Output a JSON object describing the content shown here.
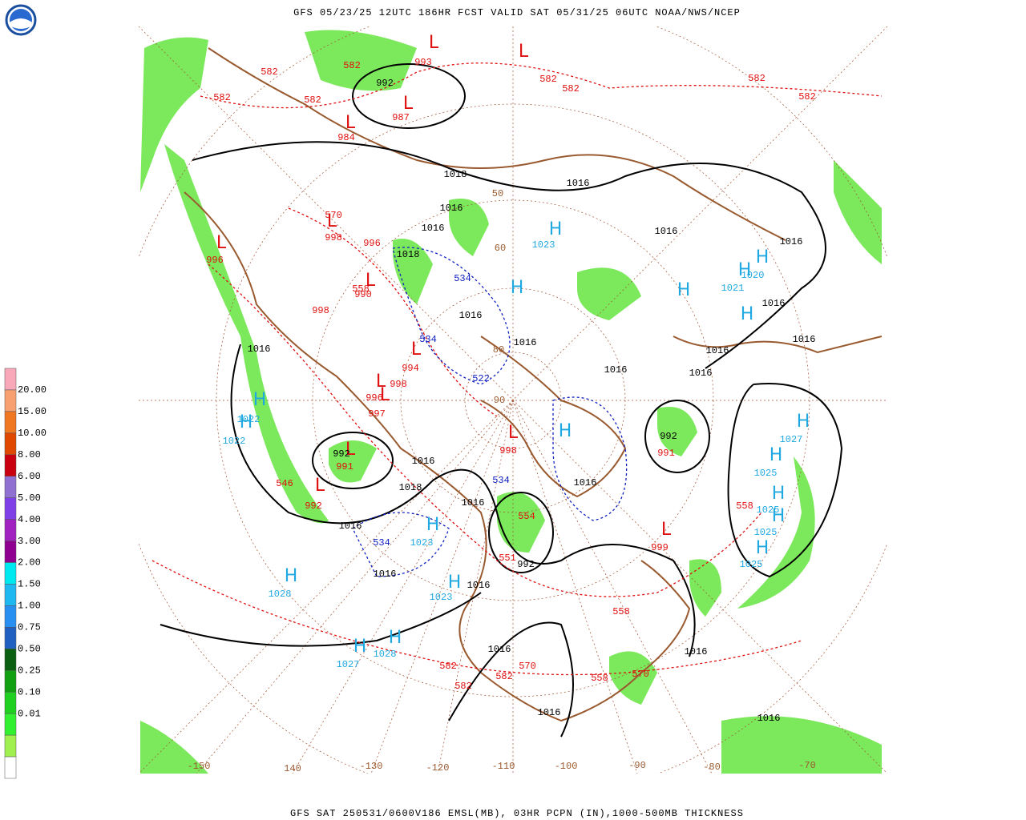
{
  "header": {
    "title": "GFS 05/23/25 12UTC 186HR FCST VALID SAT 05/31/25 06UTC NOAA/NWS/NCEP"
  },
  "footer": {
    "caption": "GFS SAT 250531/0600V186 EMSL(MB), 03HR PCPN (IN),1000-500MB THICKNESS"
  },
  "legend": {
    "colors": [
      "#f8a8b8",
      "#f8a070",
      "#f07820",
      "#e04800",
      "#c80010",
      "#9070d0",
      "#8040e8",
      "#a020c0",
      "#900090",
      "#00e8f0",
      "#20b8f0",
      "#2890f0",
      "#2060c0",
      "#0a6010",
      "#10a010",
      "#20d020",
      "#30f030",
      "#a0f050",
      "#ffffff"
    ],
    "labels": [
      "20.00",
      "15.00",
      "10.00",
      "8.00",
      "6.00",
      "5.00",
      "4.00",
      "3.00",
      "2.00",
      "1.50",
      "1.00",
      "0.75",
      "0.50",
      "0.25",
      "0.10",
      "0.01"
    ]
  },
  "map": {
    "longitudes": [
      "-150",
      "140",
      "-130",
      "-120",
      "-110",
      "-100",
      "-90",
      "-80",
      "-70"
    ],
    "latitudes": [
      "90",
      "80",
      "60",
      "50"
    ],
    "centers": [
      {
        "letter": "H",
        "color": "#20a8e0"
      },
      {
        "letter": "H",
        "color": "#20a8e0"
      },
      {
        "letter": "H",
        "color": "#20a8e0"
      },
      {
        "letter": "H",
        "color": "#20a8e0"
      },
      {
        "letter": "H",
        "color": "#20a8e0"
      },
      {
        "letter": "H",
        "color": "#20a8e0"
      },
      {
        "letter": "H",
        "color": "#20a8e0"
      },
      {
        "letter": "H",
        "color": "#20a8e0"
      },
      {
        "letter": "H",
        "color": "#20a8e0"
      },
      {
        "letter": "H",
        "color": "#20a8e0"
      },
      {
        "letter": "H",
        "color": "#20a8e0"
      },
      {
        "letter": "H",
        "color": "#20a8e0"
      },
      {
        "letter": "H",
        "color": "#20a8e0"
      },
      {
        "letter": "H",
        "color": "#20a8e0"
      },
      {
        "letter": "H",
        "color": "#20a8e0"
      },
      {
        "letter": "H",
        "color": "#20a8e0"
      },
      {
        "letter": "H",
        "color": "#20a8e0"
      },
      {
        "letter": "H",
        "color": "#20a8e0"
      },
      {
        "letter": "H",
        "color": "#20a8e0"
      },
      {
        "letter": "L",
        "color": "#e01010"
      },
      {
        "letter": "L",
        "color": "#e01010"
      },
      {
        "letter": "L",
        "color": "#e01010"
      },
      {
        "letter": "L",
        "color": "#e01010"
      },
      {
        "letter": "L",
        "color": "#e01010"
      },
      {
        "letter": "L",
        "color": "#e01010"
      },
      {
        "letter": "L",
        "color": "#e01010"
      },
      {
        "letter": "L",
        "color": "#e01010"
      },
      {
        "letter": "L",
        "color": "#e01010"
      },
      {
        "letter": "L",
        "color": "#e01010"
      },
      {
        "letter": "L",
        "color": "#e01010"
      },
      {
        "letter": "L",
        "color": "#e01010"
      },
      {
        "letter": "L",
        "color": "#e01010"
      },
      {
        "letter": "L",
        "color": "#e01010"
      }
    ],
    "labels": [
      {
        "text": "1016",
        "color": "#000000"
      },
      {
        "text": "1016",
        "color": "#000000"
      },
      {
        "text": "1016",
        "color": "#000000"
      },
      {
        "text": "1016",
        "color": "#000000"
      },
      {
        "text": "1016",
        "color": "#000000"
      },
      {
        "text": "1016",
        "color": "#000000"
      },
      {
        "text": "1016",
        "color": "#000000"
      },
      {
        "text": "1016",
        "color": "#000000"
      },
      {
        "text": "1018",
        "color": "#000000"
      },
      {
        "text": "1016",
        "color": "#000000"
      },
      {
        "text": "1016",
        "color": "#000000"
      },
      {
        "text": "1016",
        "color": "#000000"
      },
      {
        "text": "1016",
        "color": "#000000"
      },
      {
        "text": "1016",
        "color": "#000000"
      },
      {
        "text": "1016",
        "color": "#000000"
      },
      {
        "text": "1016",
        "color": "#000000"
      },
      {
        "text": "1016",
        "color": "#000000"
      },
      {
        "text": "1016",
        "color": "#000000"
      },
      {
        "text": "1018",
        "color": "#000000"
      },
      {
        "text": "1016",
        "color": "#000000"
      },
      {
        "text": "1016",
        "color": "#000000"
      },
      {
        "text": "1016",
        "color": "#000000"
      },
      {
        "text": "1016",
        "color": "#000000"
      },
      {
        "text": "1018",
        "color": "#000000"
      },
      {
        "text": "992",
        "color": "#000000"
      },
      {
        "text": "992",
        "color": "#000000"
      },
      {
        "text": "992",
        "color": "#000000"
      },
      {
        "text": "992",
        "color": "#000000"
      },
      {
        "text": "1016",
        "color": "#000000"
      },
      {
        "text": "1016",
        "color": "#000000"
      },
      {
        "text": "582",
        "color": "#e01010"
      },
      {
        "text": "582",
        "color": "#e01010"
      },
      {
        "text": "582",
        "color": "#e01010"
      },
      {
        "text": "582",
        "color": "#e01010"
      },
      {
        "text": "582",
        "color": "#e01010"
      },
      {
        "text": "582",
        "color": "#e01010"
      },
      {
        "text": "582",
        "color": "#e01010"
      },
      {
        "text": "582",
        "color": "#e01010"
      },
      {
        "text": "570",
        "color": "#e01010"
      },
      {
        "text": "558",
        "color": "#e01010"
      },
      {
        "text": "546",
        "color": "#e01010"
      },
      {
        "text": "558",
        "color": "#e01010"
      },
      {
        "text": "558",
        "color": "#e01010"
      },
      {
        "text": "558",
        "color": "#e01010"
      },
      {
        "text": "570",
        "color": "#e01010"
      },
      {
        "text": "582",
        "color": "#e01010"
      },
      {
        "text": "582",
        "color": "#e01010"
      },
      {
        "text": "582",
        "color": "#e01010"
      },
      {
        "text": "570",
        "color": "#e01010"
      },
      {
        "text": "998",
        "color": "#e01010"
      },
      {
        "text": "996",
        "color": "#e01010"
      },
      {
        "text": "992",
        "color": "#e01010"
      },
      {
        "text": "991",
        "color": "#e01010"
      },
      {
        "text": "997",
        "color": "#e01010"
      },
      {
        "text": "998",
        "color": "#e01010"
      },
      {
        "text": "991",
        "color": "#e01010"
      },
      {
        "text": "993",
        "color": "#e01010"
      },
      {
        "text": "987",
        "color": "#e01010"
      },
      {
        "text": "984",
        "color": "#e01010"
      },
      {
        "text": "998",
        "color": "#e01010"
      },
      {
        "text": "990",
        "color": "#e01010"
      },
      {
        "text": "996",
        "color": "#e01010"
      },
      {
        "text": "994",
        "color": "#e01010"
      },
      {
        "text": "998",
        "color": "#e01010"
      },
      {
        "text": "996",
        "color": "#e01010"
      },
      {
        "text": "999",
        "color": "#e01010"
      },
      {
        "text": "554",
        "color": "#e01010"
      },
      {
        "text": "551",
        "color": "#e01010"
      },
      {
        "text": "534",
        "color": "#1020c0"
      },
      {
        "text": "522",
        "color": "#1020c0"
      },
      {
        "text": "534",
        "color": "#1020c0"
      },
      {
        "text": "534",
        "color": "#1020c0"
      },
      {
        "text": "534",
        "color": "#1020c0"
      },
      {
        "text": "1023",
        "color": "#20a8e0"
      },
      {
        "text": "1028",
        "color": "#20a8e0"
      },
      {
        "text": "1027",
        "color": "#20a8e0"
      },
      {
        "text": "1028",
        "color": "#20a8e0"
      },
      {
        "text": "1023",
        "color": "#20a8e0"
      },
      {
        "text": "1021",
        "color": "#20a8e0"
      },
      {
        "text": "1020",
        "color": "#20a8e0"
      },
      {
        "text": "1027",
        "color": "#20a8e0"
      },
      {
        "text": "1025",
        "color": "#20a8e0"
      },
      {
        "text": "1025",
        "color": "#20a8e0"
      },
      {
        "text": "1025",
        "color": "#20a8e0"
      },
      {
        "text": "1025",
        "color": "#20a8e0"
      },
      {
        "text": "1022",
        "color": "#20a8e0"
      },
      {
        "text": "1022",
        "color": "#20a8e0"
      },
      {
        "text": "1023",
        "color": "#20a8e0"
      }
    ]
  }
}
